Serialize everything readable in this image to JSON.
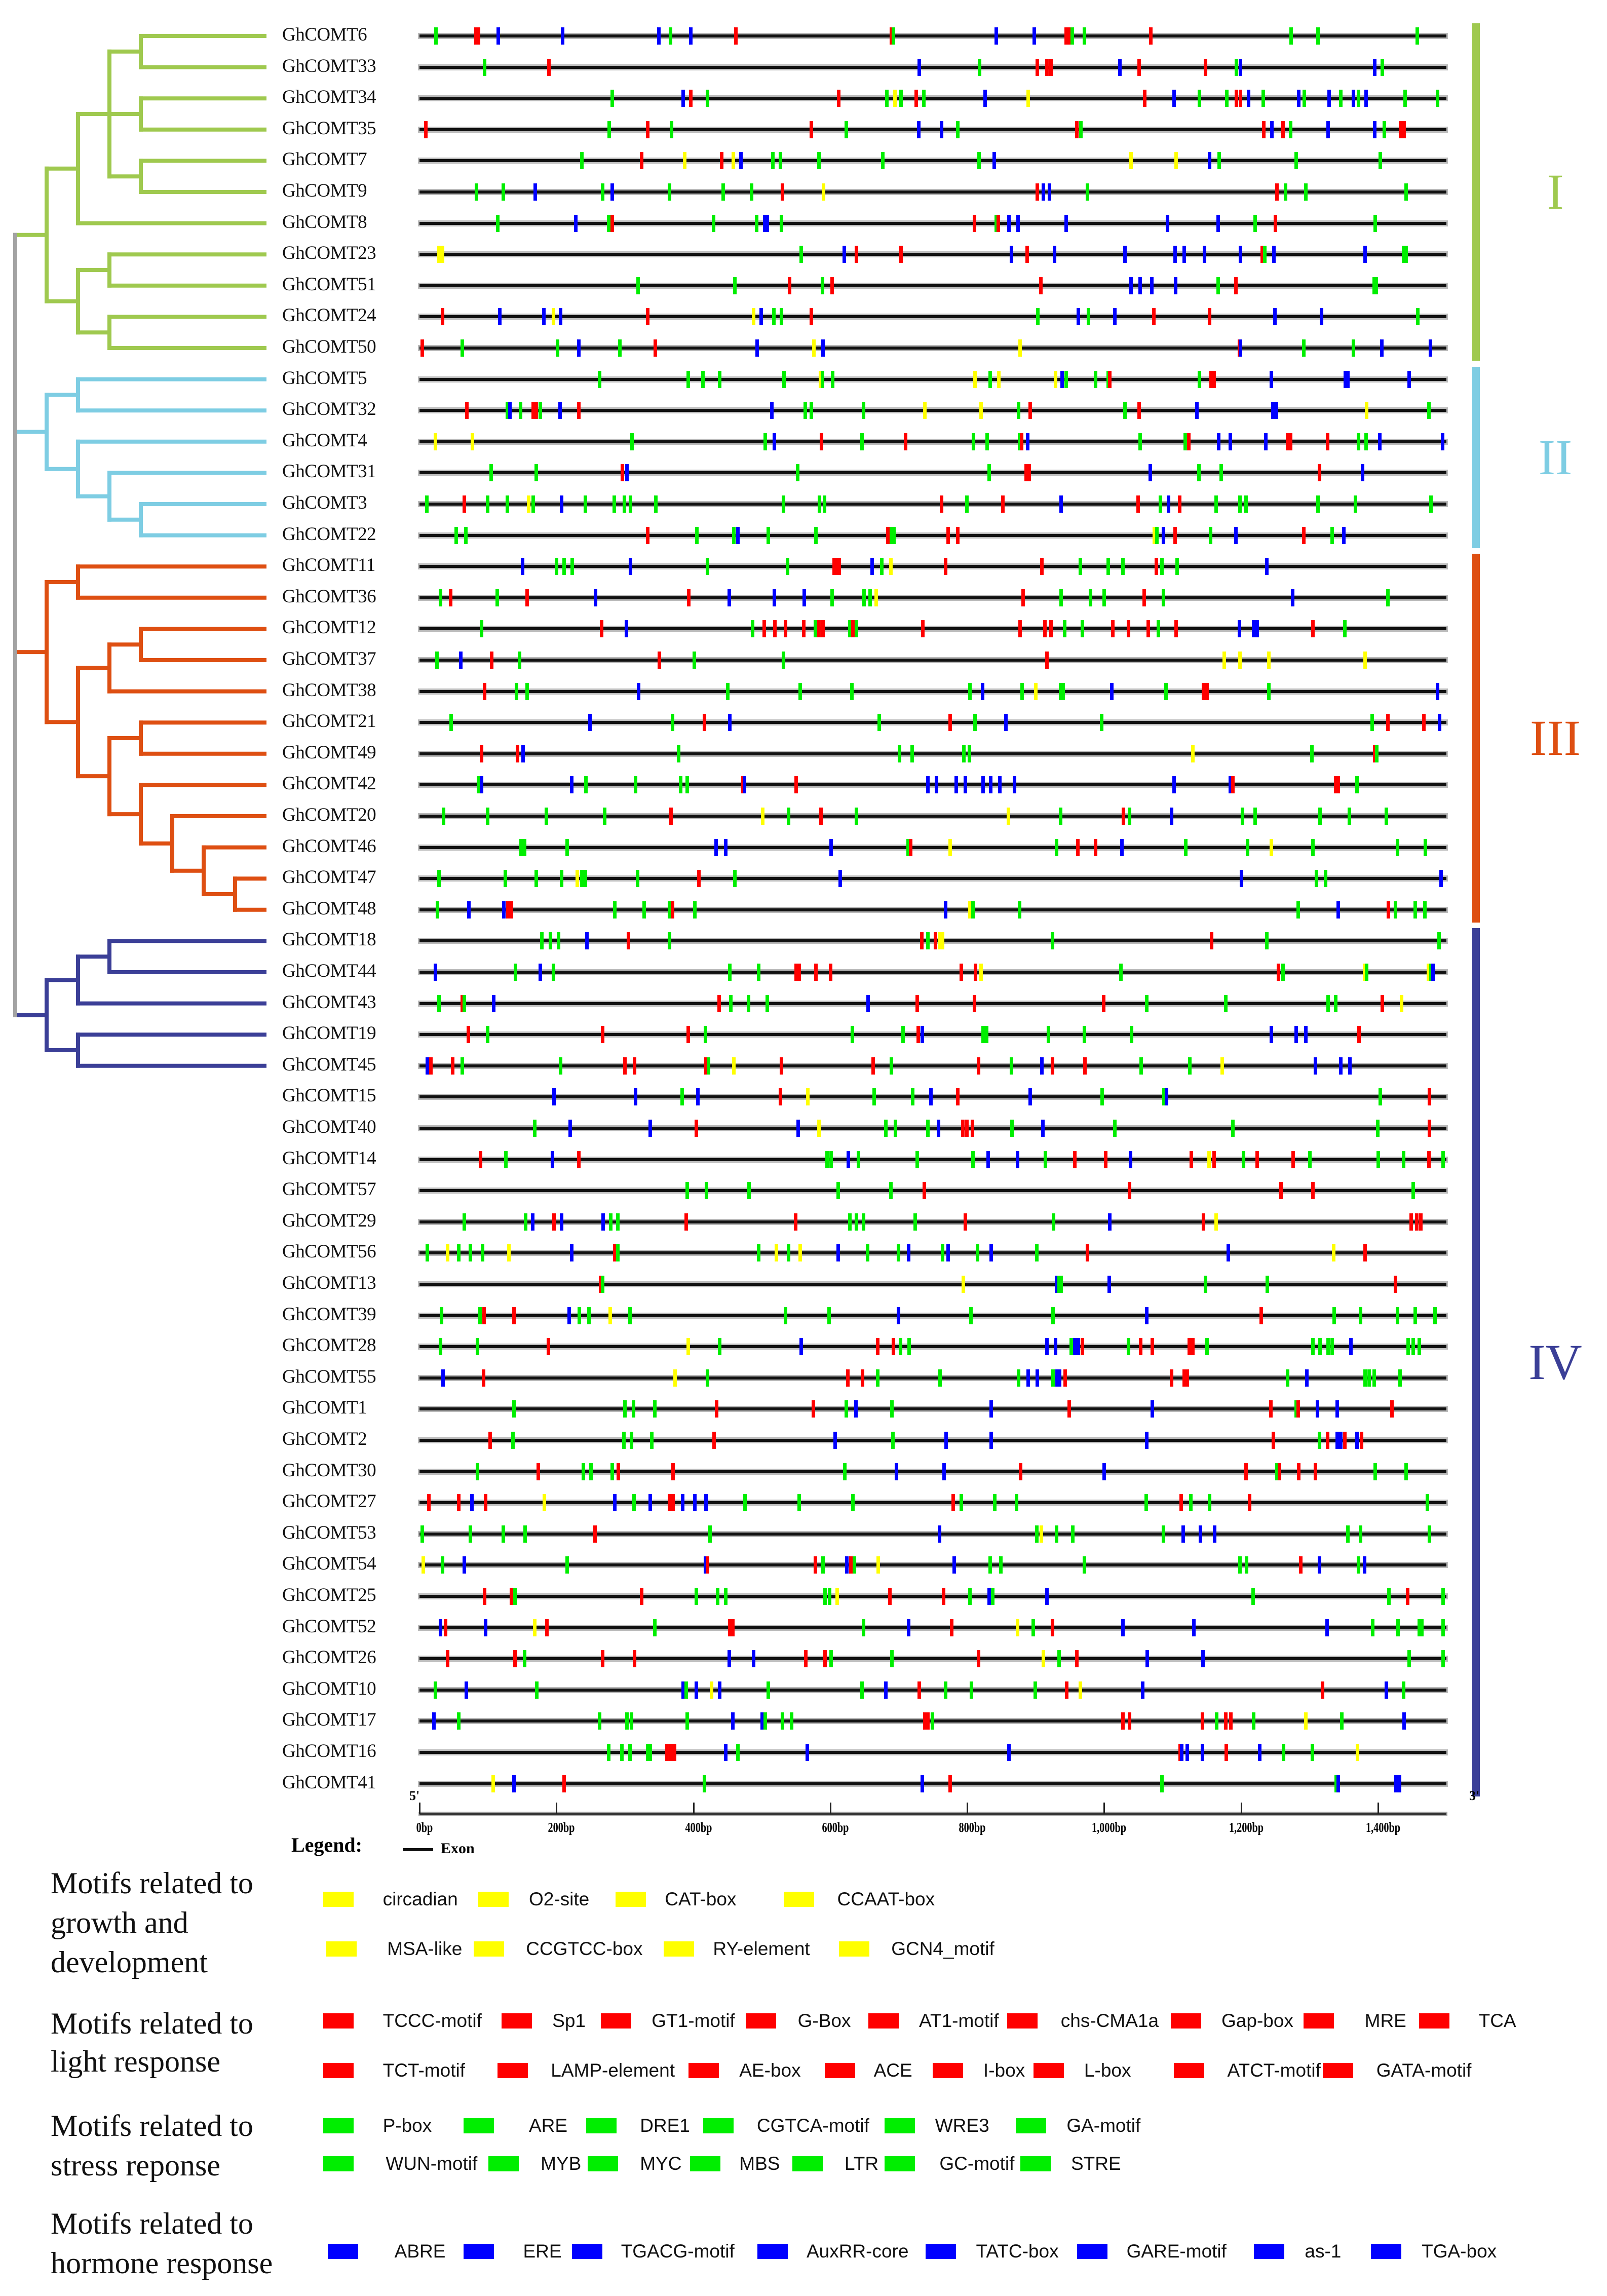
{
  "clades": [
    {
      "label": "I",
      "color": "#9fc94f",
      "first": 0,
      "last": 10
    },
    {
      "label": "II",
      "color": "#7ecde3",
      "first": 11,
      "last": 16
    },
    {
      "label": "III",
      "color": "#de4f12",
      "first": 17,
      "last": 28
    },
    {
      "label": "IV",
      "color": "#3b3f97",
      "first": 29,
      "last": 56
    }
  ],
  "tree": [
    [
      [
        [
          [
            [
              0,
              1
            ],
            [
              2,
              3
            ],
            [
              4,
              5
            ]
          ],
          6
        ],
        [
          [
            7,
            8
          ],
          [
            9,
            10
          ]
        ]
      ]
    ],
    [
      [
        [
          11,
          12
        ],
        [
          13,
          [
            14,
            [
              15,
              16
            ]
          ]
        ]
      ]
    ],
    [
      [
        [
          17,
          18
        ],
        [
          [
            [
              19,
              20
            ],
            21
          ],
          [
            [
              22,
              23
            ],
            [
              24,
              [
                25,
                [
                  26,
                  [
                    27,
                    28
                  ]
                ]
              ]
            ]
          ]
        ]
      ]
    ],
    [
      [
        [
          [
            29,
            30
          ],
          31
        ],
        [
          32,
          33
        ]
      ],
      [
        [
          [
            34,
            35
          ],
          36
        ],
        [
          37,
          [
            38,
            39
          ]
        ]
      ],
      [
        [
          [
            40,
            41
          ],
          [
            42,
            43
          ]
        ],
        [
          44,
          [
            45,
            46
          ]
        ]
      ],
      [
        [
          47,
          48
        ],
        49
      ],
      [
        [
          [
            50,
            51
          ],
          52
        ],
        [
          53,
          [
            54,
            [
              55,
              56
            ]
          ]
        ]
      ]
    ]
  ],
  "mark_colors": {
    "y": "#ffff00",
    "r": "#ff0000",
    "g": "#00ee00",
    "b": "#0000ff"
  },
  "genes": [
    {
      "name": "GhCOMT6",
      "marks": "g24 r82 r86 b115 b209 b349 g366 b396 r462 r689 g692 b842 b898 r944 r948 g953 g971 r1068 g1273 g1312 g1457"
    },
    {
      "name": "GhCOMT33",
      "marks": "g95 r189 b730 g818 r902 r916 r922 b1023 r1051 r1148 g1193 b1199 b1395 g1406"
    },
    {
      "name": "GhCOMT34",
      "marks": "g281 b385 r396 g420 r612 g682 y694 g703 r725 g736 b826 y889 r1059 b1102 g1139 g1179 r1193 r1199 b1211 g1232 b1284 g1292 b1328 g1345 b1364 g1371 b1382 g1439 g1487"
    },
    {
      "name": "GhCOMT35",
      "marks": "r9 g277 r333 g368 r572 g623 b729 b762 g786 r960 g966 r1233 b1245 r1261 g1272 b1327 b1395 g1409 r1433 r1438"
    },
    {
      "name": "GhCOMT7",
      "marks": "g237 r324 y387 r441 y458 b469 g516 g527 g583 g676 g817 b839 y1039 y1105 b1154 g1168 g1280 g1403"
    },
    {
      "name": "GhCOMT9",
      "marks": "g83 g122 b169 g267 b281 g365 g443 g485 r530 y590 r902 b911 b920 g975 r1252 g1265 g1294 g1441"
    },
    {
      "name": "GhCOMT8",
      "marks": "g114 b228 g276 r281 g429 g492 b504 b508 g528 r810 g842 r845 b861 b874 b944 b1092 b1166 g1220 r1250 g1396"
    },
    {
      "name": "GhCOMT23",
      "marks": "y28 y33 g557 b620 r638 r703 b864 r887 b927 b1030 b1103 b1117 b1146 b1199 r1231 g1234 b1248 b1381 g1437 g1441"
    },
    {
      "name": "GhCOMT51",
      "marks": "g319 g460 r540 g588 r602 r907 b1039 b1052 b1069 b1104 g1166 r1192 g1394 g1397"
    },
    {
      "name": "GhCOMT24",
      "marks": "r33 b117 b181 y195 b206 r333 y488 b499 g517 g528 r572 g903 b962 g977 b1015 r1072 r1154 b1249 b1317 g1458"
    },
    {
      "name": "GhCOMT50",
      "marks": "r4 g62 g201 b232 g292 r344 b493 y576 b589 y877 r1197 b1199 g1291 g1364 b1405 b1476"
    },
    {
      "name": "GhCOMT5",
      "marks": "g263 g392 g414 g438 g532 y585 g588 g603 y811 g833 y846 y929 b938 g944 g987 g1006 r1008 g1139 r1156 r1160 b1244 b1352 b1356 b1445"
    },
    {
      "name": "GhCOMT32",
      "marks": "r69 g128 b132 g147 r166 r170 g176 b205 r232 b514 g563 g572 g648 y738 y820 g875 r892 g1030 r1051 b1135 b1246 b1251 y1383 g1474"
    },
    {
      "name": "GhCOMT4",
      "marks": "y23 y77 g310 g505 b518 r587 g646 r710 g809 g829 g876 r879 b888 g1052 g1118 r1123 b1167 b1184 b1236 r1268 r1272 r1326 g1371 g1382 b1402 b1494"
    },
    {
      "name": "GhCOMT31",
      "marks": "g104 g170 r296 b303 g552 g832 r886 r890 b1067 g1138 g1171 r1314 b1377"
    },
    {
      "name": "GhCOMT3",
      "marks": "g10 r65 g99 g128 y159 g166 b207 g242 g284 g299 g308 g345 g531 g584 g591 r762 g799 r852 b937 r1049 g1082 b1094 r1110 g1163 g1198 g1207 g1312 g1367 g1477"
    },
    {
      "name": "GhCOMT22",
      "marks": "g53 g67 r333 g405 g459 b465 g509 g579 r684 g689 g693 r772 r786 y1073 g1077 b1086 r1103 g1155 b1192 r1291 g1333 b1350"
    },
    {
      "name": "GhCOMT11",
      "marks": "b150 g200 g211 g223 b308 g420 g537 r605 r609 r613 b661 g675 y688 r768 r909 g965 g1006 g1027 r1076 g1084 g1106 b1237"
    },
    {
      "name": "GhCOMT36",
      "marks": "g30 r45 g113 r157 b257 r393 b452 b518 b562 g602 g649 g658 y667 r881 g937 g980 g1000 r1058 g1086 b1275 g1414"
    },
    {
      "name": "GhCOMT12",
      "marks": "g90 r266 b302 g486 r503 r519 r534 r561 g578 r583 r589 g628 r633 g638 r735 r877 r913 r922 g942 g968 r1012 r1035 r1064 g1079 r1105 b1197 b1218 b1223 r1305 g1351"
    },
    {
      "name": "GhCOMT37",
      "marks": "g25 b60 r105 g146 r350 g401 g531 r916 y1175 y1198 y1240 y1381"
    },
    {
      "name": "GhCOMT38",
      "marks": "r95 g141 g157 b320 g450 g556 g631 g804 b822 g880 y900 g936 g940 b1011 g1090 r1145 r1150 g1240 b1487"
    },
    {
      "name": "GhCOMT21",
      "marks": "g46 b249 g369 r416 b453 g671 r775 g811 b856 g996 g1391 r1414 r1467 b1490"
    },
    {
      "name": "GhCOMT49",
      "marks": "r90 r143 b151 g378 g701 g719 g795 g803 y1129 g1303 r1395 g1398"
    },
    {
      "name": "GhCOMT42",
      "marks": "g86 b90 b222 g243 g315 g381 g391 r472 b474 r550 b742 b755 b784 b797 b823 b834 b847 b869 b1102 b1184 r1188 r1338 r1342 g1369"
    },
    {
      "name": "GhCOMT20",
      "marks": "g35 g99 g185 g270 r367 y501 g539 r586 g638 y860 g936 r1028 g1037 b1098 g1202 g1220 g1315 g1358 g1412"
    },
    {
      "name": "GhCOMT46",
      "marks": "g148 g153 g215 b433 b447 b601 g713 r717 y775 g930 r961 r987 b1026 g1119 g1209 y1244 g1305 g1428 g1469"
    },
    {
      "name": "GhCOMT47",
      "marks": "g28 g125 g170 g207 y230 g237 g242 g318 r408 g460 b614 b1200 g1310 g1323 b1492"
    },
    {
      "name": "GhCOMT48",
      "marks": "g26 b72 b123 r129 r134 g285 g328 g365 r369 g402 b768 y804 g808 g876 g1283 b1342 r1415 g1425 g1454 g1468"
    },
    {
      "name": "GhCOMT18",
      "marks": "g178 g191 g203 b244 r305 g365 r733 g742 r753 y760 y764 g924 r1157 g1237 g1489"
    },
    {
      "name": "GhCOMT44",
      "marks": "b23 g140 b176 g195 g453 g495 r550 r554 r579 r600 r791 r812 y820 g1024 r1254 g1261 y1380 g1383 y1473 g1477 b1480"
    },
    {
      "name": "GhCOMT43",
      "marks": "g28 r62 g65 b108 r437 g454 g480 g508 b655 r727 r810 r999 g1062 g1177 g1327 g1338 r1406 y1434"
    },
    {
      "name": "GhCOMT19",
      "marks": "r71 g99 r267 r392 g417 g632 g706 r728 b734 g823 g828 g918 g971 g1040 b1244 b1280 b1294 r1372"
    },
    {
      "name": "GhCOMT45",
      "marks": "b11 r16 r48 g62 g206 r300 r314 r418 g422 y459 r528 r662 g689 r816 g864 b909 r924 r972 g1054 g1125 y1172 b1308 b1345 b1359"
    },
    {
      "name": "GhCOMT15",
      "marks": "b196 b315 g383 b406 r527 y567 g664 g720 b747 r786 b892 g997 g1087 b1091 g1403 r1475"
    },
    {
      "name": "GhCOMT40",
      "marks": "g168 b220 b337 r404 b553 y583 g681 g695 g742 b758 r793 r799 r807 g865 b910 g1015 g1188 g1399 r1475"
    },
    {
      "name": "GhCOMT14",
      "marks": "r89 g126 b194 r232 g595 g601 b626 g641 g727 g808 b830 b873 g914 r957 r1002 b1038 r1127 y1153 r1160 g1203 r1223 r1276 g1300 g1400 g1437 r1474 g1495"
    },
    {
      "name": "GhCOMT57",
      "marks": "g391 g419 g481 g611 g688 r737 r1037 r1258 r1305 g1451"
    },
    {
      "name": "GhCOMT29",
      "marks": "g65 g155 b165 r196 b207 b268 g279 g289 r389 r549 g628 g638 g648 g724 r797 g926 b1008 r1145 y1163 r1448 r1456 r1462"
    },
    {
      "name": "GhCOMT56",
      "marks": "g11 y41 g57 g74 g92 y130 b222 r285 g289 g495 y521 g539 y556 b611 g654 g699 b714 g764 b772 g815 b835 g901 r975 b1181 y1335 r1381"
    },
    {
      "name": "GhCOMT13",
      "marks": "r264 g267 y794 b930 g934 g937 b1007 g1148 g1238 r1425"
    },
    {
      "name": "GhCOMT39",
      "marks": "g32 g88 r94 r138 b218 g233 g247 y278 g307 g534 g598 b699 g805 g925 b1062 r1229 g1336 g1374 g1428 g1454 g1483"
    },
    {
      "name": "GhCOMT28",
      "marks": "g30 g84 r188 y392 g438 b557 r669 r692 g702 g715 b916 b929 g952 b957 b962 r968 g1035 r1053 r1070 r1124 r1129 g1150 g1305 g1315 g1327 g1333 b1360 g1444 g1451 g1460"
    },
    {
      "name": "GhCOMT55",
      "marks": "b34 r93 y373 g420 r625 r647 g669 g760 g875 b889 b902 g925 b931 b935 r943 r1098 r1117 r1121 g1268 b1296 g1381 g1387 g1394 g1432"
    },
    {
      "name": "GhCOMT1",
      "marks": "g138 g300 g312 g343 r434 r575 g623 b637 g690 b835 r949 b1070 r1243 g1280 r1283 b1311 b1340 r1420"
    },
    {
      "name": "GhCOMT2",
      "marks": "r103 g136 g298 g309 g339 r430 b607 g691 b769 b835 b1062 r1247 g1314 r1326 b1340 b1345 r1351 b1369 r1376"
    },
    {
      "name": "GhCOMT30",
      "marks": "g84 r173 g239 g250 g281 r290 r370 g621 b696 b766 r878 b1000 r1207 g1252 r1256 r1284 r1308 g1396 g1441"
    },
    {
      "name": "GhCOMT27",
      "marks": "r13 r57 b76 r96 y182 b285 g313 b337 r365 r370 b384 b402 b418 g475 g554 g633 r779 g791 g840 g872 g1061 r1112 g1126 g1154 r1212 g1472"
    },
    {
      "name": "GhCOMT53",
      "marks": "g4 g74 g122 g154 r256 g424 b759 g901 y908 g930 g954 g1086 b1115 b1140 b1161 g1356 g1374 g1475"
    },
    {
      "name": "GhCOMT54",
      "marks": "y5 g33 b65 g215 b417 r420 r578 g589 b624 r630 g635 y670 b781 g833 g849 g971 g1198 g1208 r1287 b1314 g1371 b1380"
    },
    {
      "name": "GhCOMT25",
      "marks": "r95 r134 g139 r324 g404 g435 g447 g592 g599 y610 r687 r765 g804 b832 g837 b916 g1217 g1416 r1443 g1495"
    },
    {
      "name": "GhCOMT52",
      "marks": "b30 r38 b96 y168 r186 g343 r453 r457 g648 b714 r777 y873 g896 r924 b1027 b1131 b1325 g1392 g1429 g1460 g1464 g1495"
    },
    {
      "name": "GhCOMT26",
      "marks": "r41 r139 g153 r267 r314 b452 b488 r564 r592 g601 g690 r816 y911 g934 r960 b1063 b1144 g1445 g1495"
    },
    {
      "name": "GhCOMT10",
      "marks": "g23 b68 g171 b385 g389 b404 y426 b438 g509 g646 b681 r730 g768 g806 g899 r945 y965 b1056 r1319 b1412 g1437"
    },
    {
      "name": "GhCOMT17",
      "marks": "b21 g57 g263 g303 g309 g391 b457 b500 g505 g530 g543 r738 r742 g749 r1027 r1037 r1143 g1164 r1177 r1185 g1218 y1294 g1347 b1438"
    },
    {
      "name": "GhCOMT16",
      "marks": "g276 g295 g307 g333 g337 r361 r367 r372 b447 g465 b566 b861 r1111 b1113 b1121 b1143 r1178 b1227 g1262 g1304 y1370"
    },
    {
      "name": "GhCOMT41",
      "marks": "y107 b138 r211 g416 b734 r775 g1084 g1339 b1342 b1426 b1431"
    }
  ],
  "axis": {
    "start_label": "5'",
    "end_label": "3'",
    "range_bp": [
      0,
      1500
    ],
    "ticks": [
      {
        "bp": 0,
        "label": "0bp"
      },
      {
        "bp": 200,
        "label": "200bp"
      },
      {
        "bp": 400,
        "label": "400bp"
      },
      {
        "bp": 600,
        "label": "600bp"
      },
      {
        "bp": 800,
        "label": "800bp"
      },
      {
        "bp": 1000,
        "label": "1,000bp"
      },
      {
        "bp": 1200,
        "label": "1,200bp"
      },
      {
        "bp": 1400,
        "label": "1,400bp"
      }
    ]
  },
  "legend": {
    "title": "Legend:",
    "exon_label": "Exon",
    "categories": [
      {
        "key": "y",
        "color": "#ffff00",
        "heading": [
          "Motifs related to",
          "growth and",
          "development"
        ],
        "rows": [
          [
            "circadian",
            "O2-site",
            "CAT-box",
            "CCAAT-box"
          ],
          [
            "MSA-like",
            "CCGTCC-box",
            "RY-element",
            "GCN4_motif"
          ]
        ]
      },
      {
        "key": "r",
        "color": "#ff0000",
        "heading": [
          "Motifs related to",
          "light response"
        ],
        "rows": [
          [
            "TCCC-motif",
            "Sp1",
            "GT1-motif",
            "G-Box",
            "AT1-motif",
            "chs-CMA1a",
            "Gap-box",
            "MRE",
            "TCA"
          ],
          [
            "TCT-motif",
            "LAMP-element",
            "AE-box",
            "ACE",
            "I-box",
            "L-box",
            "ATCT-motif",
            "GATA-motif"
          ]
        ]
      },
      {
        "key": "g",
        "color": "#00ee00",
        "heading": [
          "Motifs related to",
          "stress reponse"
        ],
        "rows": [
          [
            "P-box",
            "ARE",
            "DRE1",
            "CGTCA-motif",
            "WRE3",
            "GA-motif"
          ],
          [
            "WUN-motif",
            "MYB",
            "MYC",
            "MBS",
            "LTR",
            "GC-motif",
            "STRE"
          ]
        ]
      },
      {
        "key": "b",
        "color": "#0000ff",
        "heading": [
          "Motifs related to",
          "hormone response"
        ],
        "rows": [
          [
            "ABRE",
            "ERE",
            "TGACG-motif",
            "AuxRR-core",
            "TATC-box",
            "GARE-motif",
            "as-1",
            "TGA-box"
          ]
        ]
      }
    ]
  }
}
